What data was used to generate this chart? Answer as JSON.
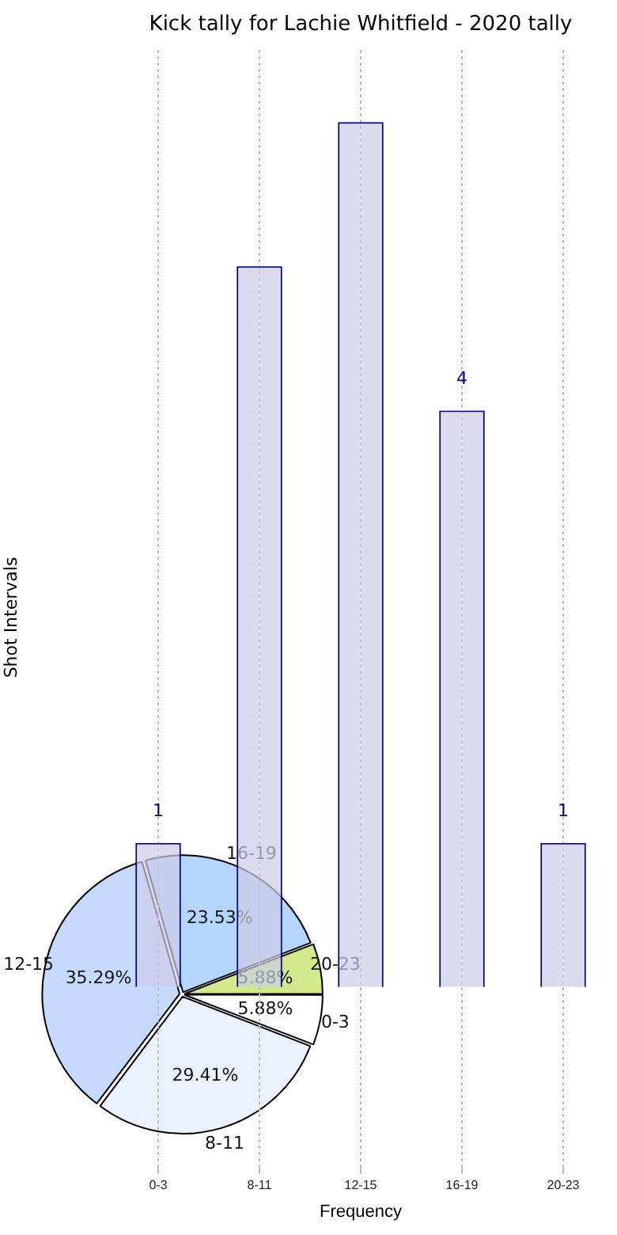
{
  "chart_data": [
    {
      "type": "bar",
      "title": "Kick tally for Lachie Whitfield - 2020 tally",
      "xlabel": "Frequency",
      "ylabel": "Shot Intervals",
      "categories": [
        "0-3",
        "8-11",
        "12-15",
        "16-19",
        "20-23"
      ],
      "values": [
        1,
        5,
        6,
        4,
        1
      ],
      "value_labels": [
        "1",
        null,
        null,
        "4",
        "1"
      ],
      "color": "#cccce6",
      "ylim": [
        -1.25,
        6.5
      ],
      "tick_labels": "x",
      "grid": "x",
      "legend": false
    },
    {
      "type": "pie",
      "categories": [
        "0-3",
        "8-11",
        "12-15",
        "16-19",
        "20-23"
      ],
      "values": [
        5.88,
        29.41,
        35.29,
        23.53,
        5.88
      ],
      "value_labels": [
        "5.88%",
        "29.41%",
        "35.29%",
        "23.53%",
        "5.88%"
      ],
      "colors": [
        "#ffffff",
        "#eaf1ff",
        "#c6d9ff",
        "#b4d5ff",
        "#d2ea8c"
      ],
      "legend": false
    }
  ]
}
